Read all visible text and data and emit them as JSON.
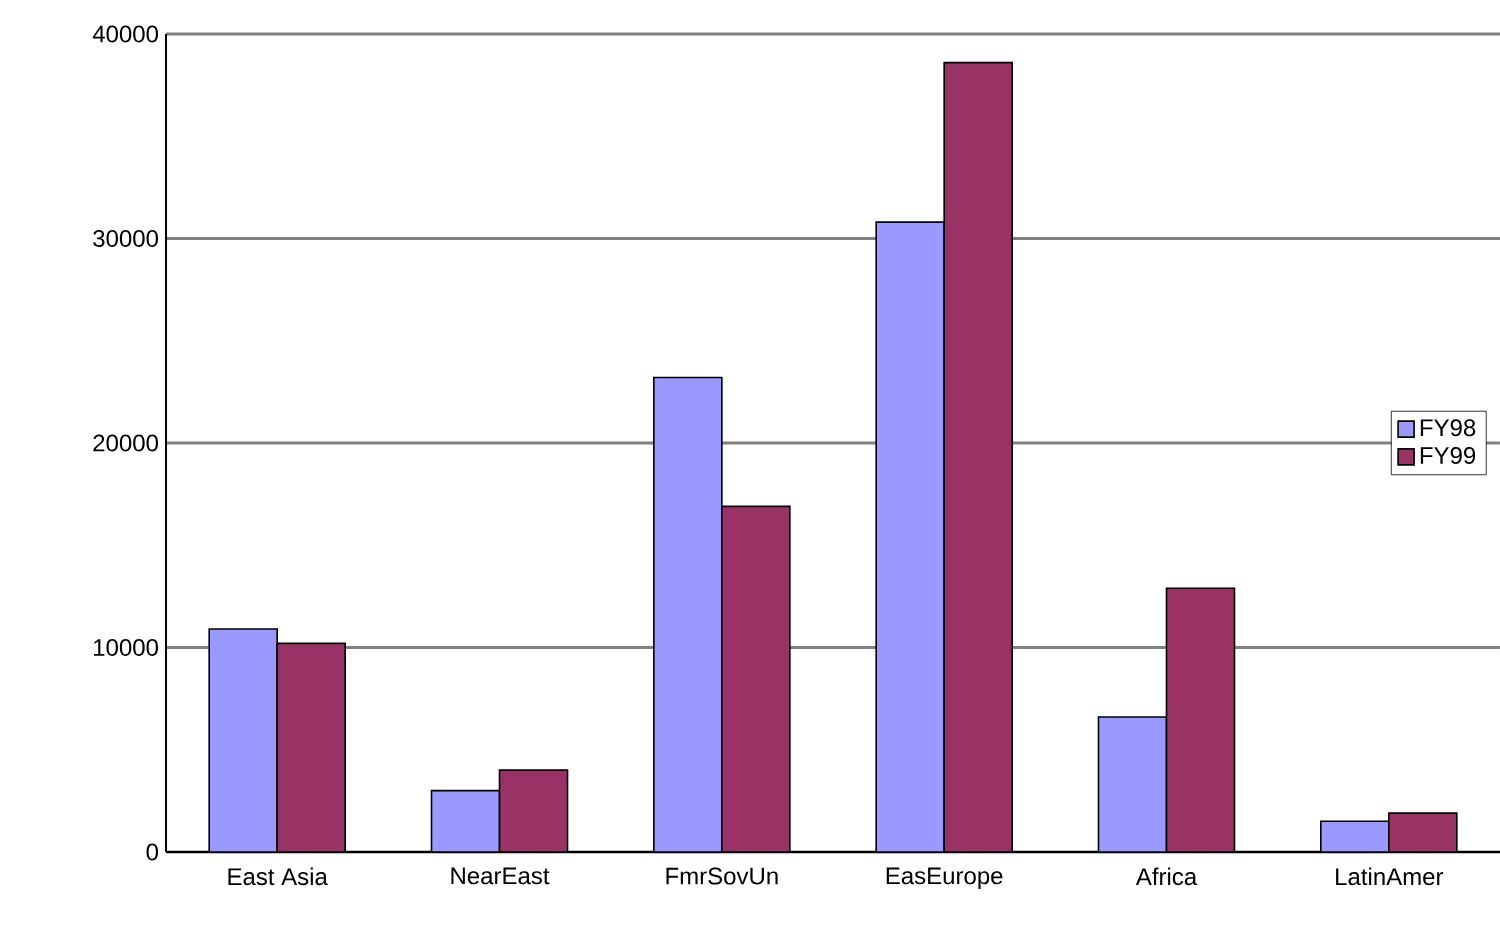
{
  "chart_data": {
    "type": "bar",
    "categories": [
      "East Asia",
      "NearEast",
      "FmrSovUn",
      "EasEurope",
      "Africa",
      "LatinAmer"
    ],
    "series": [
      {
        "name": "FY98",
        "color": "#9999ff",
        "values": [
          10900,
          3000,
          23200,
          30800,
          6600,
          1500
        ]
      },
      {
        "name": "FY99",
        "color": "#993366",
        "values": [
          10200,
          4000,
          16900,
          38600,
          12900,
          1900
        ]
      }
    ],
    "ylim": [
      0,
      40000
    ],
    "yticks": [
      0,
      10000,
      20000,
      30000,
      40000
    ],
    "grid": "y",
    "legend": "right"
  }
}
